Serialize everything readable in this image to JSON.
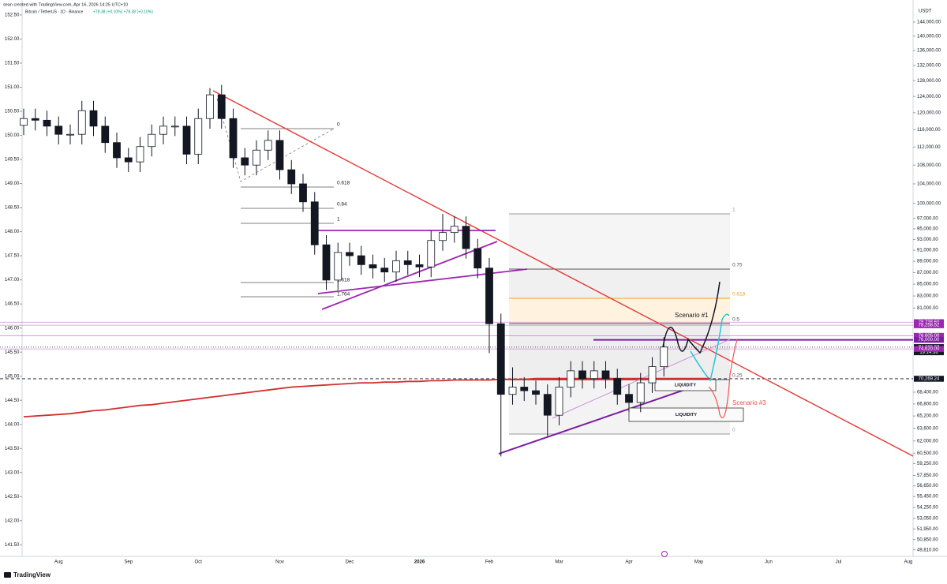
{
  "header": {
    "credit": "sean created with TradingView.com, Apr 16, 2026 14:25 UTC+10",
    "symbol": "Bitcoin / TetherUS · 1D · Binance",
    "change": "+78.38 (+0.10%)  +78.38 (+0.10%)"
  },
  "footer": {
    "logo": "TradingView"
  },
  "chart_data": {
    "type": "candlestick",
    "log_scale": true,
    "currency": "USDT",
    "categories": [
      null,
      null,
      null,
      "Aug",
      null,
      null,
      null,
      null,
      null,
      "Sep",
      null,
      null,
      null,
      null,
      null,
      "Oct",
      null,
      null,
      null,
      null,
      null,
      null,
      "Nov",
      null,
      null,
      null,
      null,
      null,
      "Dec",
      null,
      null,
      null,
      null,
      null,
      "2026",
      null,
      null,
      null,
      null,
      null,
      "Feb",
      null,
      null,
      null,
      null,
      null,
      "Mar",
      null,
      null,
      null,
      null,
      null,
      "Apr",
      null,
      null,
      null,
      null,
      null,
      "May",
      null,
      null,
      null,
      null,
      null,
      "Jun",
      null,
      null,
      null,
      null,
      null,
      "Jul",
      null,
      null,
      null,
      null,
      null,
      "Aug"
    ],
    "open": [
      117000,
      118600,
      118200,
      116800,
      114900,
      114900,
      120500,
      116800,
      113000,
      109600,
      108700,
      112100,
      114900,
      116800,
      116800,
      110400,
      118600,
      124400,
      118600,
      109600,
      108000,
      111300,
      113500,
      107000,
      104000,
      100300,
      92000,
      85700,
      90600,
      90000,
      88400,
      87800,
      87100,
      89100,
      88400,
      88000,
      92800,
      94300,
      95500,
      91300,
      87800,
      78500,
      68100,
      69100,
      68600,
      68100,
      65300,
      69100,
      71400,
      70300,
      71400,
      70300,
      68100,
      67000,
      69700,
      72000,
      null,
      null,
      null,
      null,
      null,
      null,
      null,
      null,
      null,
      null,
      null,
      null,
      null,
      null,
      null,
      null,
      null,
      null,
      null,
      null,
      null
    ],
    "high": [
      121000,
      121000,
      120500,
      119100,
      117200,
      122900,
      122900,
      119100,
      115300,
      111800,
      114300,
      117200,
      119100,
      119100,
      119100,
      121000,
      126100,
      126900,
      121000,
      111800,
      113500,
      115800,
      115800,
      109100,
      106100,
      102300,
      93800,
      92400,
      92400,
      91800,
      90200,
      89600,
      90900,
      90900,
      90200,
      94700,
      97900,
      97400,
      97400,
      93100,
      89600,
      80100,
      71900,
      70500,
      70000,
      69500,
      70500,
      72800,
      72800,
      72800,
      72800,
      71700,
      69500,
      71100,
      73400,
      76400,
      null,
      null,
      null,
      null,
      null,
      null,
      null,
      null,
      null,
      null,
      null,
      null,
      null,
      null,
      null,
      null,
      null,
      null,
      null,
      null,
      null
    ],
    "low": [
      114700,
      115800,
      114500,
      112600,
      112600,
      112600,
      114500,
      110700,
      107400,
      106500,
      106500,
      109900,
      112600,
      114500,
      108200,
      108200,
      116200,
      116200,
      107400,
      105800,
      105800,
      109100,
      104900,
      101900,
      98300,
      90200,
      84000,
      84000,
      88200,
      86600,
      86000,
      85400,
      85400,
      86600,
      86200,
      86200,
      90900,
      92400,
      89500,
      86000,
      74000,
      60100,
      66700,
      67200,
      66700,
      62600,
      64000,
      67700,
      68900,
      68900,
      68900,
      66700,
      65700,
      65700,
      68300,
      70600,
      null,
      null,
      null,
      null,
      null,
      null,
      null,
      null,
      null,
      null,
      null,
      null,
      null,
      null,
      null,
      null,
      null,
      null,
      null,
      null,
      null
    ],
    "close": [
      118600,
      118200,
      116800,
      114900,
      114900,
      120500,
      116800,
      113000,
      109600,
      108700,
      112100,
      114900,
      116800,
      116800,
      110400,
      118600,
      124400,
      118600,
      109600,
      108000,
      111300,
      113500,
      107000,
      104000,
      100300,
      92000,
      85700,
      90600,
      90000,
      88400,
      87800,
      87100,
      89100,
      88400,
      88000,
      92800,
      94300,
      95500,
      91300,
      87800,
      78500,
      68100,
      69100,
      68600,
      68100,
      65300,
      69100,
      71400,
      70300,
      71400,
      70300,
      68100,
      67000,
      69700,
      72000,
      74900,
      null,
      null,
      null,
      null,
      null,
      null,
      null,
      null,
      null,
      null,
      null,
      null,
      null,
      null,
      null,
      null,
      null,
      null,
      null,
      null,
      null
    ],
    "series": [
      {
        "color": "#d32f2f",
        "values": [
          65100,
          65200,
          65300,
          65400,
          65500,
          65700,
          65900,
          66000,
          66200,
          66400,
          66600,
          66700,
          66900,
          67100,
          67300,
          67500,
          67700,
          67900,
          68100,
          68300,
          68500,
          68700,
          68900,
          69100,
          69200,
          69300,
          69400,
          69500,
          69600,
          69700,
          69700,
          69800,
          69800,
          69900,
          69900,
          70000,
          70000,
          70100,
          70100,
          70100,
          70100,
          70200,
          70200,
          70200,
          70300,
          70300,
          70300,
          70300,
          70300,
          70300,
          70300,
          70300,
          70300,
          70300,
          70300,
          70300,
          70300,
          70300,
          70300,
          70300,
          null,
          null,
          null,
          null,
          null,
          null,
          null,
          null,
          null,
          null,
          null,
          null,
          null,
          null,
          null,
          null,
          null
        ]
      }
    ],
    "ylim": [
      49160,
      150540
    ],
    "yticks": [
      {
        "value": 144000,
        "label": "144,000.00"
      },
      {
        "value": 140000,
        "label": "140,000.00"
      },
      {
        "value": 136000,
        "label": "136,000.00"
      },
      {
        "value": 132000,
        "label": "132,000.00"
      },
      {
        "value": 128000,
        "label": "128,000.00"
      },
      {
        "value": 124000,
        "label": "124,000.00"
      },
      {
        "value": 120000,
        "label": "120,000.00"
      },
      {
        "value": 116000,
        "label": "116,000.00"
      },
      {
        "value": 112000,
        "label": "112,000.00"
      },
      {
        "value": 108000,
        "label": "108,000.00"
      },
      {
        "value": 104000,
        "label": "104,000.00"
      },
      {
        "value": 100000,
        "label": "100,000.00"
      },
      {
        "value": 97000,
        "label": "97,000.00"
      },
      {
        "value": 95000,
        "label": "95,000.00"
      },
      {
        "value": 93000,
        "label": "93,000.00"
      },
      {
        "value": 91000,
        "label": "91,000.00"
      },
      {
        "value": 89000,
        "label": "89,000.00"
      },
      {
        "value": 87000,
        "label": "87,000.00"
      },
      {
        "value": 85000,
        "label": "85,000.00"
      },
      {
        "value": 83000,
        "label": "83,000.00"
      },
      {
        "value": 81000,
        "label": "81,000.00"
      },
      {
        "value": 68400,
        "label": "68,400.00"
      },
      {
        "value": 66800,
        "label": "66,800.00"
      },
      {
        "value": 65200,
        "label": "65,200.00"
      },
      {
        "value": 63600,
        "label": "63,600.00"
      },
      {
        "value": 62000,
        "label": "62,000.00"
      },
      {
        "value": 60500,
        "label": "60,500.00"
      },
      {
        "value": 59250,
        "label": "59,250.00"
      },
      {
        "value": 57850,
        "label": "57,850.00"
      },
      {
        "value": 56650,
        "label": "56,650.00"
      },
      {
        "value": 55450,
        "label": "55,450.00"
      },
      {
        "value": 54250,
        "label": "54,250.00"
      },
      {
        "value": 53050,
        "label": "53,050.00"
      },
      {
        "value": 51950,
        "label": "51,950.00"
      },
      {
        "value": 50850,
        "label": "50,850.00"
      },
      {
        "value": 49810,
        "label": "49,810.00"
      }
    ],
    "y2lim": [
      141.26,
      152.81
    ],
    "y2ticks": [
      {
        "value": 152.5,
        "label": "152.50"
      },
      {
        "value": 152,
        "label": "152.00"
      },
      {
        "value": 151.5,
        "label": "151.50"
      },
      {
        "value": 151,
        "label": "151.00"
      },
      {
        "value": 150.5,
        "label": "150.50"
      },
      {
        "value": 150,
        "label": "150.00"
      },
      {
        "value": 149.5,
        "label": "149.50"
      },
      {
        "value": 149,
        "label": "149.00"
      },
      {
        "value": 148.5,
        "label": "148.50"
      },
      {
        "value": 148,
        "label": "148.00"
      },
      {
        "value": 147.5,
        "label": "147.50"
      },
      {
        "value": 147,
        "label": "147.00"
      },
      {
        "value": 146.5,
        "label": "146.50"
      },
      {
        "value": 146,
        "label": "146.00"
      },
      {
        "value": 145.5,
        "label": "145.50"
      },
      {
        "value": 145,
        "label": "145.00"
      },
      {
        "value": 144.5,
        "label": "144.50"
      },
      {
        "value": 144,
        "label": "144.00"
      },
      {
        "value": 143.5,
        "label": "143.50"
      },
      {
        "value": 143,
        "label": "143.00"
      },
      {
        "value": 142.5,
        "label": "142.50"
      },
      {
        "value": 142,
        "label": "142.00"
      },
      {
        "value": 141.5,
        "label": "141.50"
      }
    ],
    "price_labels": [
      {
        "value": 78738.6,
        "label": "78,738.60",
        "color": "#9c27b0"
      },
      {
        "value": 78258.52,
        "label": "78,258.52",
        "color": "#9c27b0"
      },
      {
        "value": 76605,
        "label": "76,605.00",
        "color": "#9c27b0"
      },
      {
        "value": 76000,
        "label": "76,000.00",
        "color": "#7b1fa2"
      },
      {
        "value": 74888.37,
        "label": "74,888.37",
        "color": "#131722",
        "countdown": "19:14:38"
      },
      {
        "value": 74620,
        "label": "74,620.00",
        "color": "#9c27b0"
      },
      {
        "value": 70269.24,
        "label": "70,269.24",
        "color": "#131722"
      }
    ]
  },
  "annotations": {
    "fib_left": [
      "0",
      "0.618",
      "0.84",
      "1",
      "1.618",
      "1.764"
    ],
    "fib_right": [
      "1",
      "0.75",
      "0.618",
      "0.5",
      "0.25",
      "0"
    ],
    "scenario_1": "Scenario #1",
    "scenario_3": "Scenario #3",
    "liquidity": [
      "LIQUIDITY",
      "LIQUIDITY"
    ]
  }
}
